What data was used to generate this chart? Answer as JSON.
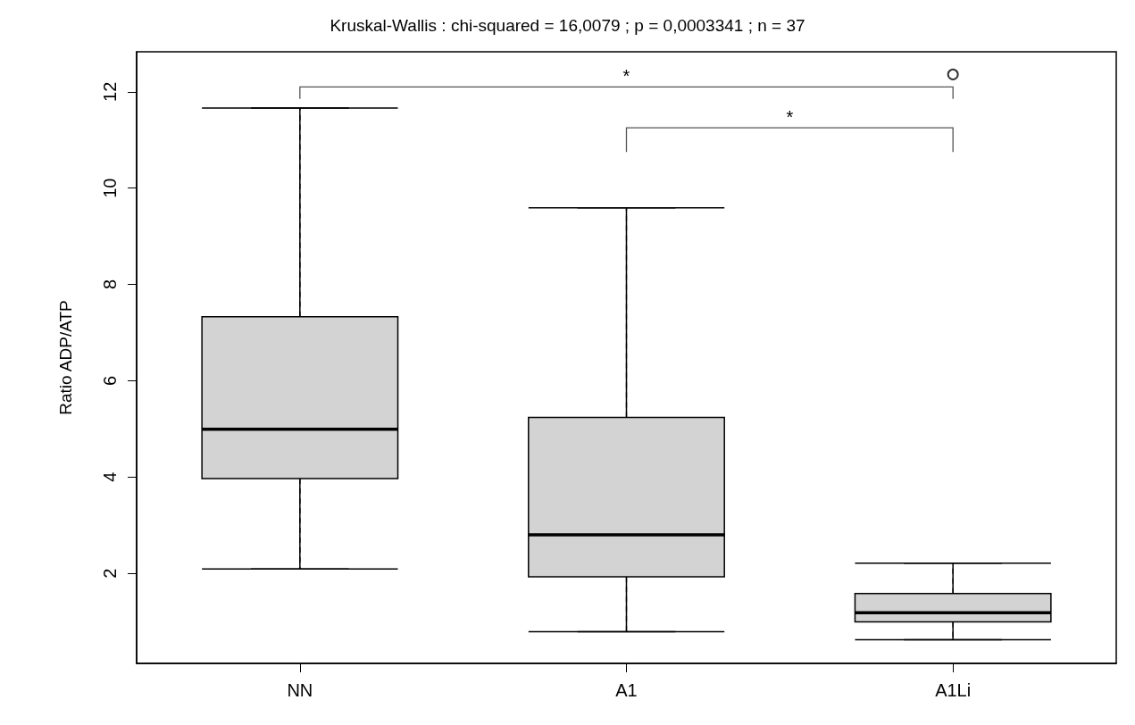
{
  "chart_data": {
    "type": "box",
    "title": "Kruskal-Wallis : chi-squared = 16,0079 ; p = 0,0003341 ; n = 37",
    "ylabel": "Ratio ADP/ATP",
    "categories": [
      "NN",
      "A1",
      "A1Li"
    ],
    "boxes": [
      {
        "low": 2.09,
        "q1": 3.97,
        "median": 4.99,
        "q3": 7.33,
        "high": 11.66
      },
      {
        "low": 0.79,
        "q1": 1.93,
        "median": 2.8,
        "q3": 5.24,
        "high": 9.59
      },
      {
        "low": 0.62,
        "q1": 0.99,
        "median": 1.18,
        "q3": 1.58,
        "high": 2.21,
        "outliers": [
          12.36
        ]
      }
    ],
    "color": "#d3d3d3",
    "ylim": [
      0.13,
      12.83
    ],
    "yticks": [
      2,
      4,
      6,
      8,
      10,
      12
    ],
    "grid": false,
    "annotations": [
      "*",
      "*"
    ]
  }
}
